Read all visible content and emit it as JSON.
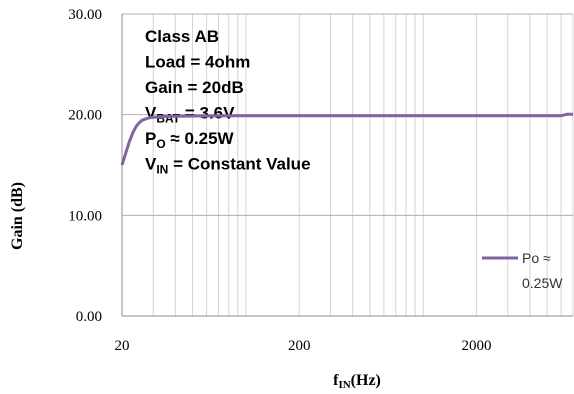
{
  "chart_data": {
    "type": "line",
    "xscale": "log",
    "xlim": [
      20,
      7000
    ],
    "ylim": [
      0,
      30
    ],
    "xlabel_main": "f",
    "xlabel_sub": "IN",
    "xlabel_unit": "(Hz)",
    "ylabel": "Gain (dB)",
    "x_tick_labels": [
      "20",
      "200",
      "2000"
    ],
    "y_tick_labels": [
      "0.00",
      "10.00",
      "20.00",
      "30.00"
    ],
    "grid": true,
    "legend_position": "right",
    "annotations": [
      {
        "main": "Class AB"
      },
      {
        "main": "Load = 4ohm"
      },
      {
        "main": "Gain = 20dB"
      },
      {
        "main": "V",
        "sub": "BAT",
        "rest": " = 3.6V"
      },
      {
        "main": "P",
        "sub": "O",
        "rest": " ≈ 0.25W"
      },
      {
        "main": "V",
        "sub": "IN",
        "rest": " = Constant Value"
      }
    ],
    "series": [
      {
        "name_line1": "Po ≈",
        "name_line2": "0.25W",
        "color": "#8064a2",
        "x": [
          20,
          21,
          22,
          23,
          24,
          25,
          26,
          28,
          30,
          35,
          40,
          60,
          100,
          200,
          500,
          1000,
          2000,
          5000,
          6000,
          6500,
          7000
        ],
        "y": [
          15.0,
          16.2,
          17.3,
          18.2,
          18.8,
          19.2,
          19.45,
          19.65,
          19.75,
          19.82,
          19.85,
          19.88,
          19.9,
          19.9,
          19.9,
          19.9,
          19.9,
          19.9,
          19.9,
          20.05,
          20.05
        ]
      }
    ]
  }
}
